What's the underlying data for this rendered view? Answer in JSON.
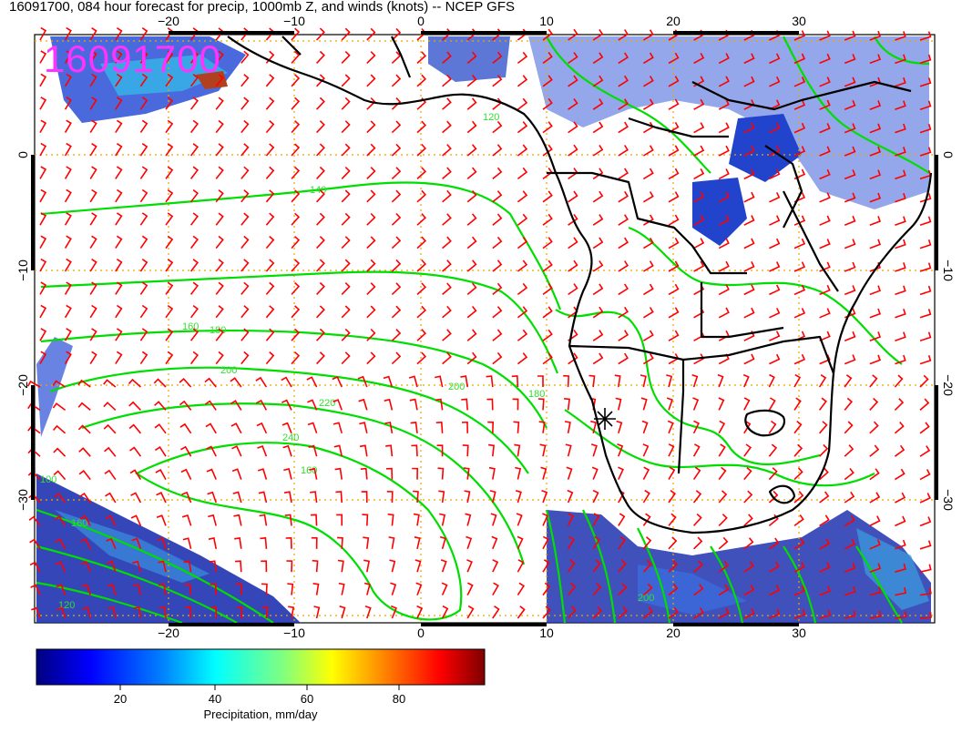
{
  "title": "16091700, 084 hour forecast for precip, 1000mb Z, and winds (knots) -- NCEP GFS",
  "stamp": "16091700",
  "axes": {
    "lon_labels": [
      "−20",
      "−10",
      "0",
      "10",
      "20",
      "30"
    ],
    "lat_labels": [
      "0",
      "−10",
      "−20",
      "−30"
    ]
  },
  "contour_labels": [
    "120",
    "140",
    "160",
    "180",
    "200",
    "220",
    "240",
    "200",
    "160",
    "120",
    "100",
    "200",
    "180",
    "160"
  ],
  "colorbar": {
    "ticks": [
      "20",
      "40",
      "60",
      "80"
    ],
    "label": "Precipitation, mm/day",
    "colors": [
      "#00007f",
      "#0000ff",
      "#0080ff",
      "#00ffff",
      "#80ff80",
      "#ffff00",
      "#ff8000",
      "#ff0000",
      "#7f0000"
    ]
  },
  "colors": {
    "contour": "#00dd00",
    "barb": "#ff0000",
    "coast": "#000000",
    "grid": "#e6a800",
    "stamp": "#ff33ff"
  }
}
